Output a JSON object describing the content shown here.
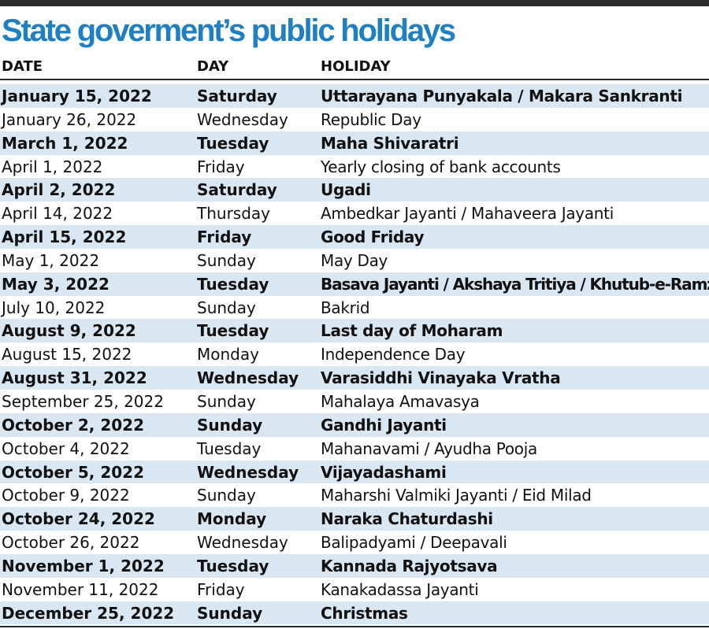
{
  "title": "State goverment’s public holidays",
  "headers": {
    "date": "DATE",
    "day": "DAY",
    "holiday": "HOLIDAY"
  },
  "shade_color": "#d9e7f2",
  "title_color": "#1e7fc2",
  "rows": [
    {
      "date": "January 15, 2022",
      "day": "Saturday",
      "holiday": "Uttarayana Punyakala / Makara Sankranti"
    },
    {
      "date": "January 26, 2022",
      "day": "Wednesday",
      "holiday": "Republic Day"
    },
    {
      "date": "March 1, 2022",
      "day": "Tuesday",
      "holiday": "Maha Shivaratri"
    },
    {
      "date": "April 1, 2022",
      "day": "Friday",
      "holiday": "Yearly closing of bank accounts"
    },
    {
      "date": "April 2, 2022",
      "day": "Saturday",
      "holiday": "Ugadi"
    },
    {
      "date": "April 14, 2022",
      "day": "Thursday",
      "holiday": "Ambedkar Jayanti / Mahaveera Jayanti"
    },
    {
      "date": "April 15, 2022",
      "day": "Friday",
      "holiday": "Good Friday"
    },
    {
      "date": "May 1, 2022",
      "day": "Sunday",
      "holiday": "May Day"
    },
    {
      "date": "May 3, 2022",
      "day": "Tuesday",
      "holiday": "Basava Jayanti / Akshaya Tritiya / Khutub-e-Ramzan"
    },
    {
      "date": "July 10, 2022",
      "day": "Sunday",
      "holiday": "Bakrid"
    },
    {
      "date": "August 9, 2022",
      "day": "Tuesday",
      "holiday": "Last day of Moharam"
    },
    {
      "date": "August 15, 2022",
      "day": "Monday",
      "holiday": "Independence Day"
    },
    {
      "date": "August 31, 2022",
      "day": "Wednesday",
      "holiday": "Varasiddhi Vinayaka Vratha"
    },
    {
      "date": "September 25, 2022",
      "day": "Sunday",
      "holiday": "Mahalaya Amavasya"
    },
    {
      "date": "October 2, 2022",
      "day": "Sunday",
      "holiday": "Gandhi Jayanti"
    },
    {
      "date": "October 4, 2022",
      "day": "Tuesday",
      "holiday": "Mahanavami / Ayudha Pooja"
    },
    {
      "date": "October 5, 2022",
      "day": "Wednesday",
      "holiday": "Vijayadashami"
    },
    {
      "date": "October 9, 2022",
      "day": "Sunday",
      "holiday": "Maharshi Valmiki Jayanti / Eid Milad"
    },
    {
      "date": "October 24, 2022",
      "day": "Monday",
      "holiday": "Naraka Chaturdashi"
    },
    {
      "date": "October 26, 2022",
      "day": "Wednesday",
      "holiday": "Balipadyami / Deepavali"
    },
    {
      "date": "November 1, 2022",
      "day": "Tuesday",
      "holiday": "Kannada Rajyotsava"
    },
    {
      "date": "November 11, 2022",
      "day": "Friday",
      "holiday": "Kanakadassa Jayanti"
    },
    {
      "date": "December 25, 2022",
      "day": "Sunday",
      "holiday": "Christmas"
    }
  ]
}
